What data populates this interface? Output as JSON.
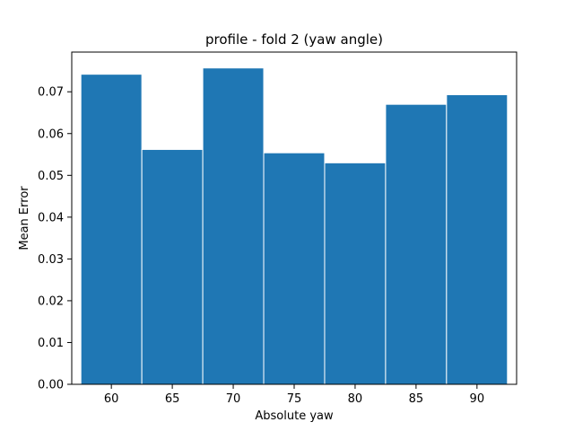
{
  "chart_data": {
    "type": "bar",
    "title": "profile - fold 2 (yaw angle)",
    "xlabel": "Absolute yaw",
    "ylabel": "Mean Error",
    "x": [
      60,
      65,
      70,
      75,
      80,
      85,
      90
    ],
    "values": [
      0.0742,
      0.0562,
      0.0757,
      0.0554,
      0.053,
      0.067,
      0.0693
    ],
    "bar_width": 5,
    "xlim": [
      56.75,
      93.25
    ],
    "ylim": [
      0,
      0.0795
    ],
    "xticks": [
      60,
      65,
      70,
      75,
      80,
      85,
      90
    ],
    "yticks": [
      0.0,
      0.01,
      0.02,
      0.03,
      0.04,
      0.05,
      0.06,
      0.07
    ],
    "ytick_labels": [
      "0.00",
      "0.01",
      "0.02",
      "0.03",
      "0.04",
      "0.05",
      "0.06",
      "0.07"
    ],
    "grid": false,
    "legend": "none",
    "bar_color": "#1f77b4",
    "bar_edge_color": "#ffffff"
  }
}
